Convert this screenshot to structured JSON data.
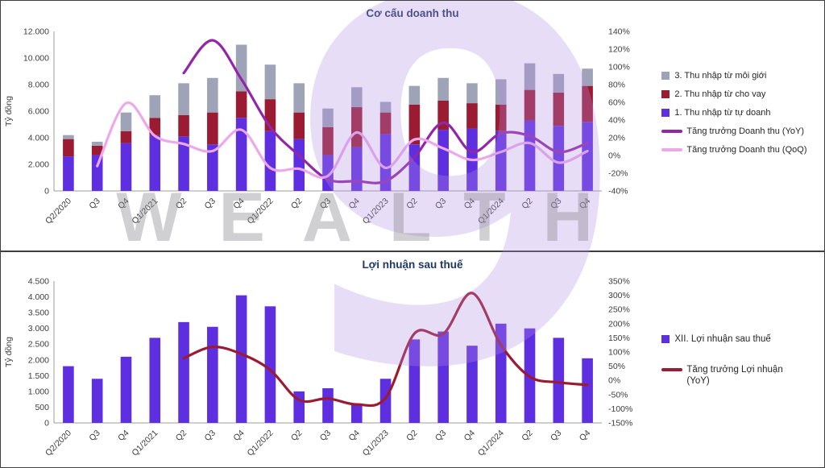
{
  "watermark": {
    "nine": "9",
    "text": "WEALTH"
  },
  "chart_data": [
    {
      "type": "bar",
      "subtype": "stacked-bars-with-lines",
      "title": "Cơ cấu doanh thu",
      "ylabel_left": "Tỷ đồng",
      "categories": [
        "Q2/2020",
        "Q3",
        "Q4",
        "Q1/2021",
        "Q2",
        "Q3",
        "Q4",
        "Q1/2022",
        "Q2",
        "Q3",
        "Q4",
        "Q1/2023",
        "Q2",
        "Q3",
        "Q4",
        "Q1/2024",
        "Q2",
        "Q3",
        "Q4"
      ],
      "left_axis": {
        "min": 0,
        "max": 12000,
        "step": 2000,
        "format": "thousands-dot"
      },
      "right_axis": {
        "min": -40,
        "max": 140,
        "step": 20,
        "format": "percent"
      },
      "grid": false,
      "legend_position": "right",
      "bar_series": [
        {
          "name": "1. Thu nhập từ tự doanh",
          "color": "#5E2FE0",
          "values": [
            2600,
            2700,
            3600,
            4200,
            4100,
            3500,
            5500,
            4500,
            3900,
            2700,
            3300,
            4300,
            3500,
            4600,
            4700,
            4500,
            5300,
            4900,
            5200
          ]
        },
        {
          "name": "2. Thu nhập từ cho vay",
          "color": "#9B1B33",
          "values": [
            1300,
            700,
            900,
            1300,
            1600,
            2400,
            2000,
            2400,
            2000,
            2100,
            3000,
            1600,
            3000,
            2200,
            1900,
            2000,
            2300,
            2500,
            2700
          ]
        },
        {
          "name": "3. Thu nhập từ môi giới",
          "color": "#9EA3B8",
          "values": [
            300,
            300,
            1400,
            1700,
            2400,
            2600,
            3500,
            2600,
            2200,
            1400,
            1500,
            800,
            1400,
            1700,
            1500,
            1900,
            2000,
            1400,
            1300
          ]
        }
      ],
      "line_series": [
        {
          "name": "Tăng trưởng Doanh thu (YoY)",
          "color": "#9226A9",
          "axis": "right",
          "values": [
            null,
            null,
            null,
            null,
            93,
            130,
            86,
            32,
            0,
            -27,
            -29,
            -29,
            -2,
            37,
            4,
            25,
            22,
            4,
            14
          ]
        },
        {
          "name": "Tăng trưởng Doanh thu (QoQ)",
          "color": "#EDA8EC",
          "axis": "right",
          "values": [
            null,
            -12,
            59,
            22,
            13,
            5,
            29,
            -14,
            -15,
            -23,
            26,
            -14,
            18,
            8,
            -5,
            4,
            14,
            -8,
            5
          ]
        }
      ],
      "legend": [
        {
          "type": "swatch",
          "label": "3. Thu nhập từ môi giới",
          "color": "#9EA3B8"
        },
        {
          "type": "swatch",
          "label": "2. Thu nhập từ cho vay",
          "color": "#9B1B33"
        },
        {
          "type": "swatch",
          "label": "1. Thu nhập từ tự doanh",
          "color": "#5E2FE0"
        },
        {
          "type": "line",
          "label": "Tăng trưởng Doanh thu (YoY)",
          "color": "#9226A9"
        },
        {
          "type": "line",
          "label": "Tăng trưởng Doanh thu (QoQ)",
          "color": "#EDA8EC"
        }
      ]
    },
    {
      "type": "bar",
      "subtype": "bars-with-line",
      "title": "Lợi nhuận sau thuế",
      "ylabel_left": "Tỷ đồng",
      "categories": [
        "Q2/2020",
        "Q3",
        "Q4",
        "Q1/2021",
        "Q2",
        "Q3",
        "Q4",
        "Q1/2022",
        "Q2",
        "Q3",
        "Q4",
        "Q1/2023",
        "Q2",
        "Q3",
        "Q4",
        "Q1/2024",
        "Q2",
        "Q3",
        "Q4"
      ],
      "left_axis": {
        "min": 0,
        "max": 4500,
        "step": 500,
        "format": "thousands-dot"
      },
      "right_axis": {
        "min": -150,
        "max": 350,
        "step": 50,
        "format": "percent"
      },
      "grid": false,
      "legend_position": "right",
      "bar_series": [
        {
          "name": "XII. Lợi nhuận sau thuế",
          "color": "#5E2FE0",
          "values": [
            1800,
            1400,
            2100,
            2700,
            3200,
            3050,
            4050,
            3700,
            1000,
            1100,
            600,
            1400,
            2650,
            2900,
            2450,
            3150,
            3000,
            2700,
            2050
          ]
        }
      ],
      "line_series": [
        {
          "name": "Tăng trưởng Lợi nhuận (YoY)",
          "color": "#9B1B33",
          "axis": "right",
          "values": [
            null,
            null,
            null,
            null,
            78,
            118,
            93,
            37,
            -69,
            -64,
            -85,
            -62,
            165,
            164,
            308,
            125,
            13,
            -7,
            -16
          ]
        }
      ],
      "legend": [
        {
          "type": "swatch",
          "label": "XII. Lợi nhuận sau thuế",
          "color": "#5E2FE0"
        },
        {
          "type": "line",
          "label": "Tăng trưởng Lợi nhuận (YoY)",
          "color": "#9B1B33"
        }
      ]
    }
  ]
}
